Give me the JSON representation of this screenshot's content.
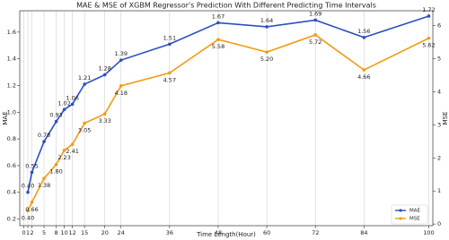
{
  "chart_data": {
    "type": "line",
    "title": "MAE & MSE of XGBM Regressor's Prediction With Different Predicting Time Intervals",
    "x_label": "Time Length(Hour)",
    "y_label": "MAE",
    "y2_label": "MSE",
    "x": [
      1,
      2,
      5,
      8,
      10,
      12,
      15,
      20,
      24,
      36,
      48,
      60,
      72,
      84,
      100
    ],
    "series": [
      {
        "name": "MAE",
        "color": "#2b4fc0",
        "values": [
          0.4,
          0.55,
          0.78,
          0.93,
          1.02,
          1.06,
          1.21,
          1.28,
          1.39,
          1.51,
          1.67,
          1.64,
          1.69,
          1.56,
          1.72
        ],
        "value_labels": [
          "0.40",
          "0.55",
          "0.78",
          "0.93",
          "1.02",
          "1.06",
          "1.21",
          "1.28",
          "1.39",
          "1.51",
          "1.67",
          "1.64",
          "1.69",
          "1.56",
          "1.72"
        ]
      },
      {
        "name": "MSE",
        "color": "#f29b13",
        "axis": "y2",
        "values": [
          0.4,
          0.66,
          1.38,
          1.8,
          2.23,
          2.41,
          3.05,
          3.33,
          4.18,
          4.57,
          5.58,
          5.2,
          5.72,
          4.66,
          5.62
        ],
        "value_labels": [
          "0.40",
          "0.66",
          "1.38",
          "1.80",
          "2.23",
          "2.41",
          "3.05",
          "3.33",
          "4.18",
          "4.57",
          "5.58",
          "5.20",
          "5.72",
          "4.66",
          "5.62"
        ]
      }
    ],
    "xlim": [
      -1,
      101
    ],
    "xticks": [
      0,
      1,
      2,
      5,
      8,
      10,
      12,
      15,
      20,
      24,
      36,
      48,
      60,
      72,
      84,
      100
    ],
    "ylim": [
      0.15,
      1.76
    ],
    "yticks": [
      0.2,
      0.4,
      0.6,
      0.8,
      {
        "value": 1,
        "label": "1.0"
      },
      1.2,
      1.4,
      1.6
    ],
    "y2lim": [
      -0.05,
      6.45
    ],
    "y2ticks": [
      0,
      1,
      2,
      3,
      4,
      5,
      6
    ],
    "grid": "x",
    "legend": "lower right"
  }
}
